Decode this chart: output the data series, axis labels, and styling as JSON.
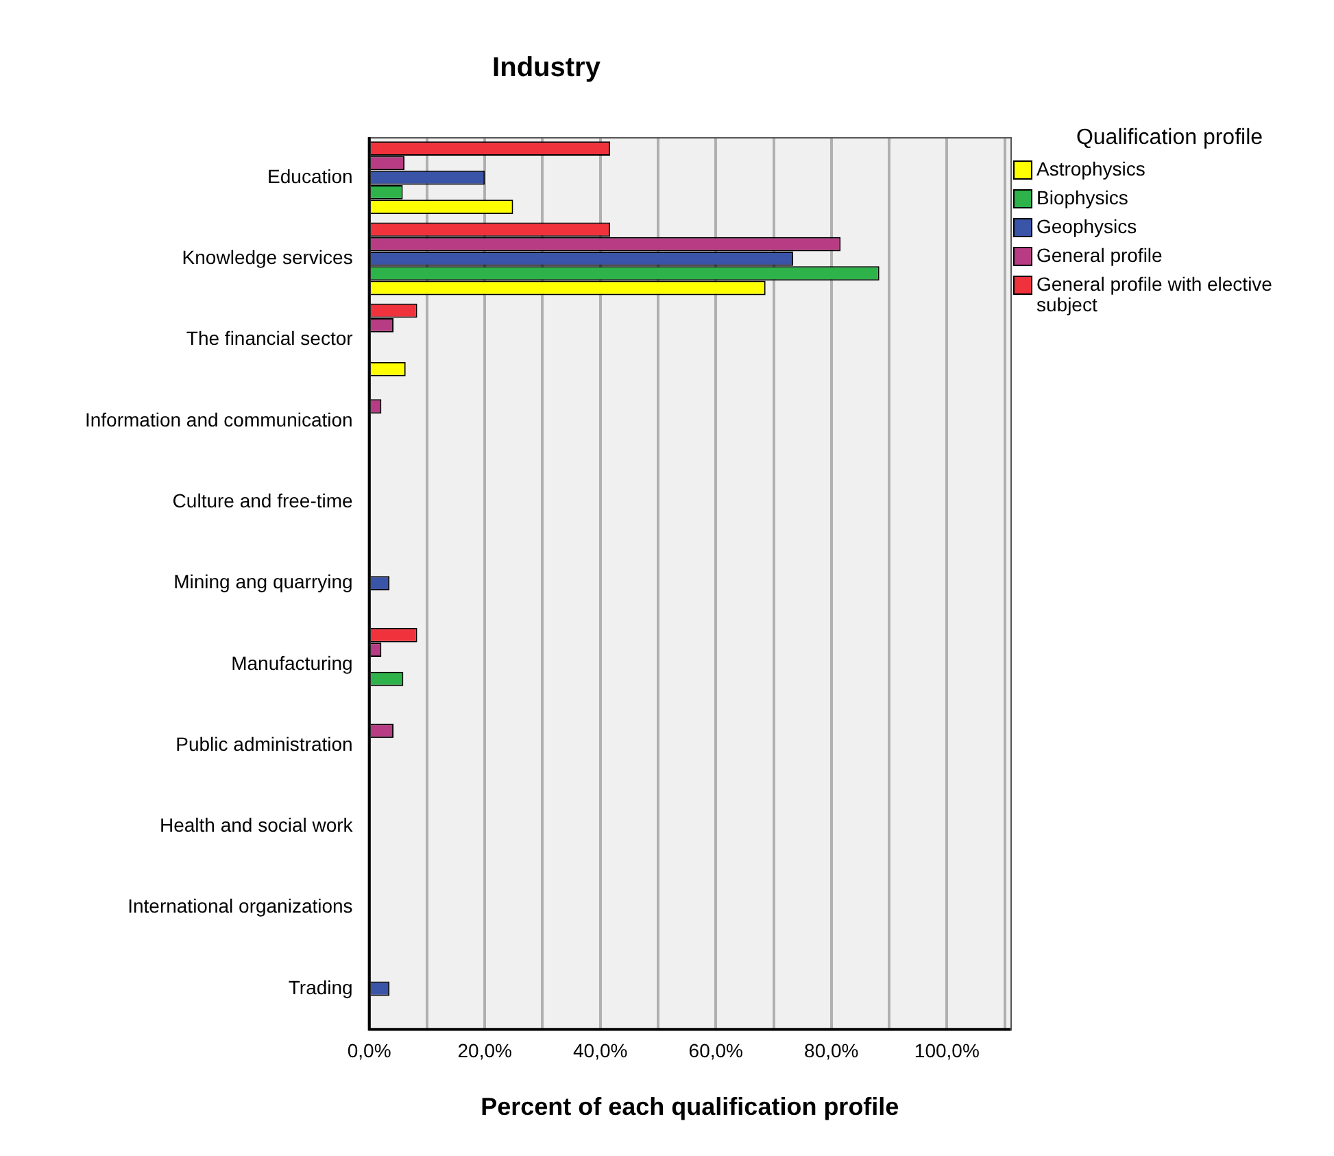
{
  "chart_data": {
    "type": "bar",
    "orientation": "horizontal",
    "title": "Industry",
    "xlabel": "Percent of each qualification profile",
    "legend_title": "Qualification profile",
    "legend": "right",
    "grid": "x",
    "categories": [
      "Education",
      "Knowledge services",
      "The financial sector",
      "Information and communication",
      "Culture and free-time",
      "Mining ang quarrying",
      "Manufacturing",
      "Public administration",
      "Health and social work",
      "International organizations",
      "Trading"
    ],
    "xlim": [
      0,
      111
    ],
    "xticks": [
      {
        "value": 0,
        "label": "0,0%"
      },
      {
        "value": 10,
        "label": null
      },
      {
        "value": 20,
        "label": "20,0%"
      },
      {
        "value": 30,
        "label": null
      },
      {
        "value": 40,
        "label": "40,0%"
      },
      {
        "value": 50,
        "label": null
      },
      {
        "value": 60,
        "label": "60,0%"
      },
      {
        "value": 70,
        "label": null
      },
      {
        "value": 80,
        "label": "80,0%"
      },
      {
        "value": 90,
        "label": null
      },
      {
        "value": 100,
        "label": "100,0%"
      },
      {
        "value": 110,
        "label": null
      }
    ],
    "series": [
      {
        "name": "Astrophysics",
        "color": "#ffff00",
        "values": [
          24.9,
          68.6,
          6.3,
          0,
          0,
          0,
          0,
          0,
          0,
          0,
          0
        ]
      },
      {
        "name": "Biophysics",
        "color": "#2db34a",
        "values": [
          5.8,
          88.3,
          0,
          0,
          0,
          0,
          5.9,
          0,
          0,
          0,
          0
        ]
      },
      {
        "name": "Geophysics",
        "color": "#3a54a8",
        "values": [
          20.0,
          73.4,
          0,
          0,
          0,
          3.5,
          0,
          0,
          0,
          0,
          3.5
        ]
      },
      {
        "name": "General profile",
        "color": "#b83c84",
        "values": [
          6.1,
          81.6,
          4.2,
          2.1,
          0,
          0,
          2.1,
          4.2,
          0,
          0,
          0
        ]
      },
      {
        "name": "General profile with elective subject",
        "color": "#f0323c",
        "values": [
          41.7,
          41.7,
          8.3,
          0,
          0,
          0,
          8.3,
          0,
          0,
          0,
          0
        ]
      }
    ]
  }
}
